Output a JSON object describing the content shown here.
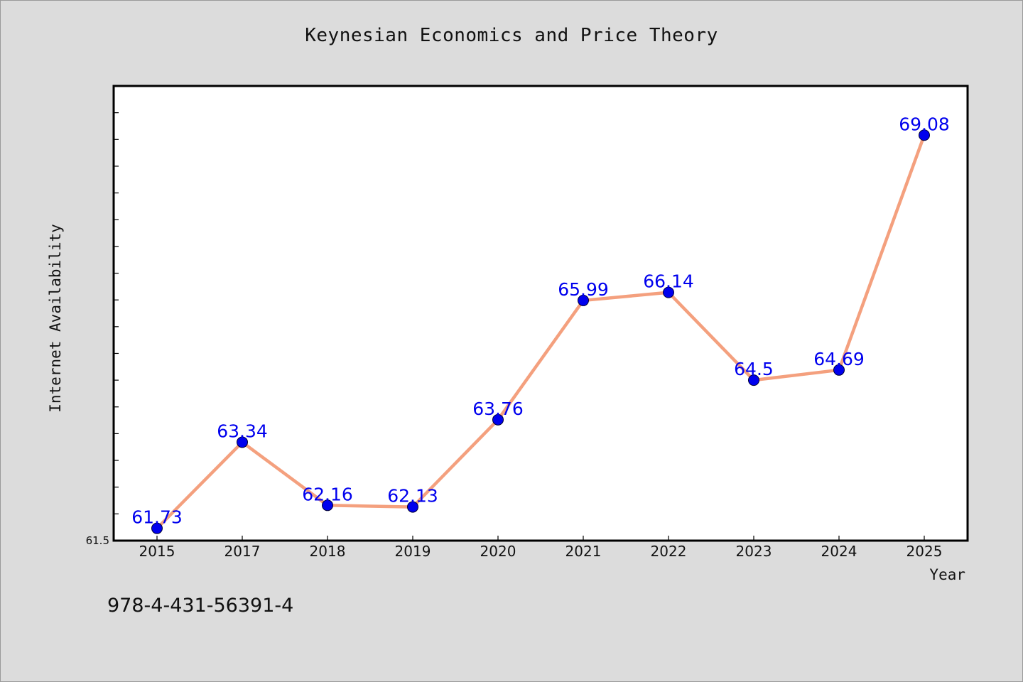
{
  "chart_data": {
    "type": "line",
    "title": "Keynesian Economics and Price Theory",
    "xlabel": "Year",
    "ylabel": "Internet Availability",
    "categories": [
      "2015",
      "2017",
      "2018",
      "2019",
      "2020",
      "2021",
      "2022",
      "2023",
      "2024",
      "2025"
    ],
    "values": [
      61.73,
      63.34,
      62.16,
      62.13,
      63.76,
      65.99,
      66.14,
      64.5,
      64.69,
      69.08
    ],
    "data_labels": [
      "61.73",
      "63.34",
      "62.16",
      "62.13",
      "63.76",
      "65.99",
      "66.14",
      "64.5",
      "64.69",
      "69.08"
    ],
    "y_tick_labels": [
      "61.5"
    ],
    "ylim": [
      61.5,
      70.0
    ],
    "grid": false,
    "legend": "none",
    "colors": {
      "line": "#f4a07e",
      "marker": "#0000ee",
      "label": "#0000ee",
      "background": "#dcdcdc",
      "plot_background": "#ffffff"
    }
  },
  "footer": {
    "isbn": "978-4-431-56391-4"
  }
}
